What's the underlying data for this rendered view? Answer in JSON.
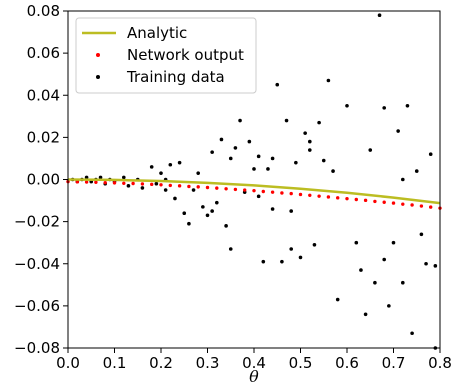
{
  "chart_data": {
    "type": "scatter",
    "title": "",
    "xlabel": "θ",
    "ylabel": "",
    "xlim": [
      0.0,
      0.8
    ],
    "ylim": [
      -0.08,
      0.08
    ],
    "xticks": [
      0.0,
      0.1,
      0.2,
      0.3,
      0.4,
      0.5,
      0.6,
      0.7,
      0.8
    ],
    "yticks": [
      -0.08,
      -0.06,
      -0.04,
      -0.02,
      0.0,
      0.02,
      0.04,
      0.06,
      0.08
    ],
    "xtick_labels": [
      "0.0",
      "0.1",
      "0.2",
      "0.3",
      "0.4",
      "0.5",
      "0.6",
      "0.7",
      "0.8"
    ],
    "ytick_labels": [
      "−0.08",
      "−0.06",
      "−0.04",
      "−0.02",
      "0.00",
      "0.02",
      "0.04",
      "0.06",
      "0.08"
    ],
    "grid": false,
    "legend_position": "top-left",
    "series": [
      {
        "name": "Analytic",
        "kind": "line",
        "color": "#bcbd22",
        "x": [
          0.0,
          0.1,
          0.2,
          0.3,
          0.4,
          0.5,
          0.6,
          0.7,
          0.8
        ],
        "y": [
          0.0,
          -0.0002,
          -0.0007,
          -0.0016,
          -0.0028,
          -0.0044,
          -0.0063,
          -0.0086,
          -0.0112
        ]
      },
      {
        "name": "Network output",
        "kind": "points",
        "color": "#ff0000",
        "x": [
          0.0,
          0.02,
          0.04,
          0.06,
          0.08,
          0.1,
          0.12,
          0.14,
          0.16,
          0.18,
          0.2,
          0.22,
          0.24,
          0.26,
          0.28,
          0.3,
          0.32,
          0.34,
          0.36,
          0.38,
          0.4,
          0.42,
          0.44,
          0.46,
          0.48,
          0.5,
          0.52,
          0.54,
          0.56,
          0.58,
          0.6,
          0.62,
          0.64,
          0.66,
          0.68,
          0.7,
          0.72,
          0.74,
          0.76,
          0.78,
          0.8
        ],
        "y": [
          -0.001,
          -0.0011,
          -0.0012,
          -0.0013,
          -0.0015,
          -0.0016,
          -0.0018,
          -0.0019,
          -0.0021,
          -0.0023,
          -0.0025,
          -0.0028,
          -0.003,
          -0.0033,
          -0.0035,
          -0.0038,
          -0.0041,
          -0.0044,
          -0.0047,
          -0.005,
          -0.0053,
          -0.0057,
          -0.006,
          -0.0064,
          -0.0067,
          -0.0071,
          -0.0075,
          -0.0079,
          -0.0083,
          -0.0087,
          -0.0091,
          -0.0095,
          -0.0099,
          -0.0104,
          -0.0108,
          -0.0112,
          -0.0117,
          -0.0121,
          -0.0126,
          -0.0131,
          -0.0136
        ]
      },
      {
        "name": "Training data",
        "kind": "points",
        "color": "#000000",
        "x": [
          0.01,
          0.02,
          0.03,
          0.04,
          0.05,
          0.06,
          0.07,
          0.08,
          0.09,
          0.1,
          0.12,
          0.13,
          0.15,
          0.16,
          0.18,
          0.19,
          0.2,
          0.21,
          0.22,
          0.23,
          0.24,
          0.25,
          0.27,
          0.28,
          0.29,
          0.3,
          0.31,
          0.32,
          0.33,
          0.34,
          0.35,
          0.36,
          0.37,
          0.38,
          0.39,
          0.4,
          0.41,
          0.42,
          0.43,
          0.44,
          0.45,
          0.46,
          0.47,
          0.48,
          0.49,
          0.5,
          0.51,
          0.52,
          0.53,
          0.54,
          0.55,
          0.56,
          0.58,
          0.6,
          0.63,
          0.64,
          0.65,
          0.66,
          0.67,
          0.68,
          0.69,
          0.7,
          0.71,
          0.72,
          0.73,
          0.74,
          0.75,
          0.76,
          0.77,
          0.78,
          0.79,
          0.21,
          0.26,
          0.31,
          0.35,
          0.41,
          0.44,
          0.48,
          0.52,
          0.57,
          0.62,
          0.68,
          0.72,
          0.79
        ],
        "y": [
          0.0,
          -0.001,
          0.0,
          0.001,
          -0.001,
          0.0,
          0.001,
          -0.002,
          0.0,
          -0.001,
          0.001,
          -0.003,
          0.0,
          -0.004,
          0.006,
          -0.002,
          0.003,
          -0.005,
          0.007,
          -0.009,
          0.008,
          -0.016,
          -0.005,
          0.003,
          -0.013,
          -0.017,
          0.013,
          -0.011,
          0.019,
          -0.022,
          -0.033,
          0.015,
          0.028,
          -0.006,
          0.018,
          0.005,
          0.011,
          -0.039,
          0.005,
          -0.014,
          0.045,
          -0.039,
          0.028,
          -0.033,
          0.008,
          -0.037,
          0.022,
          0.014,
          -0.031,
          0.027,
          0.009,
          0.047,
          -0.057,
          0.035,
          -0.043,
          -0.064,
          0.014,
          -0.049,
          0.078,
          0.034,
          -0.06,
          -0.03,
          0.023,
          -0.049,
          0.035,
          -0.073,
          0.004,
          -0.026,
          -0.04,
          0.012,
          -0.08,
          0.0,
          -0.021,
          -0.015,
          0.01,
          -0.008,
          0.01,
          -0.015,
          0.018,
          0.004,
          -0.03,
          -0.038,
          0.0,
          -0.041
        ]
      }
    ],
    "legend": [
      {
        "label": "Analytic",
        "marker": "line",
        "color": "#bcbd22"
      },
      {
        "label": "Network output",
        "marker": "dot",
        "color": "#ff0000"
      },
      {
        "label": "Training data",
        "marker": "dot",
        "color": "#000000"
      }
    ]
  }
}
